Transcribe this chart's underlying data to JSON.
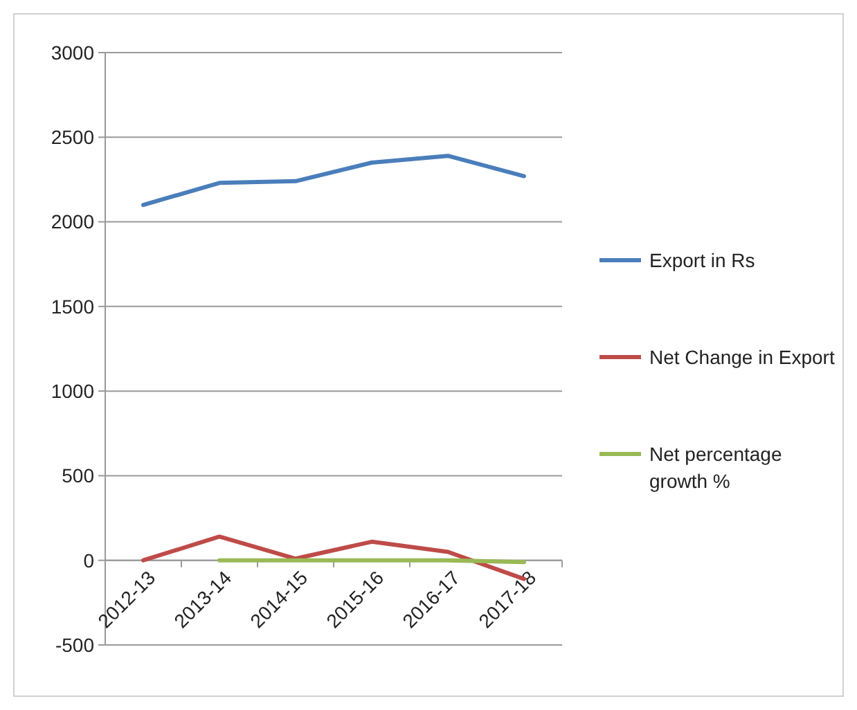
{
  "chart_data": {
    "type": "line",
    "categories": [
      "2012-13",
      "2013-14",
      "2014-15",
      "2015-16",
      "2016-17",
      "2017-18"
    ],
    "series": [
      {
        "name": "Export in Rs",
        "color": "#4a7ebb",
        "values": [
          2100,
          2230,
          2240,
          2350,
          2390,
          2270
        ]
      },
      {
        "name": "Net Change in Export",
        "color": "#be4b48",
        "values": [
          0,
          140,
          10,
          110,
          50,
          -110
        ]
      },
      {
        "name": "Net percentage growth %",
        "color": "#98b954",
        "values": [
          null,
          0,
          0,
          0,
          0,
          -10
        ]
      }
    ],
    "ylim": [
      -500,
      3000
    ],
    "yticks": [
      -500,
      0,
      500,
      1000,
      1500,
      2000,
      2500,
      3000
    ],
    "grid": "y",
    "legend": "right",
    "marker": "none",
    "line_style": "solid"
  }
}
